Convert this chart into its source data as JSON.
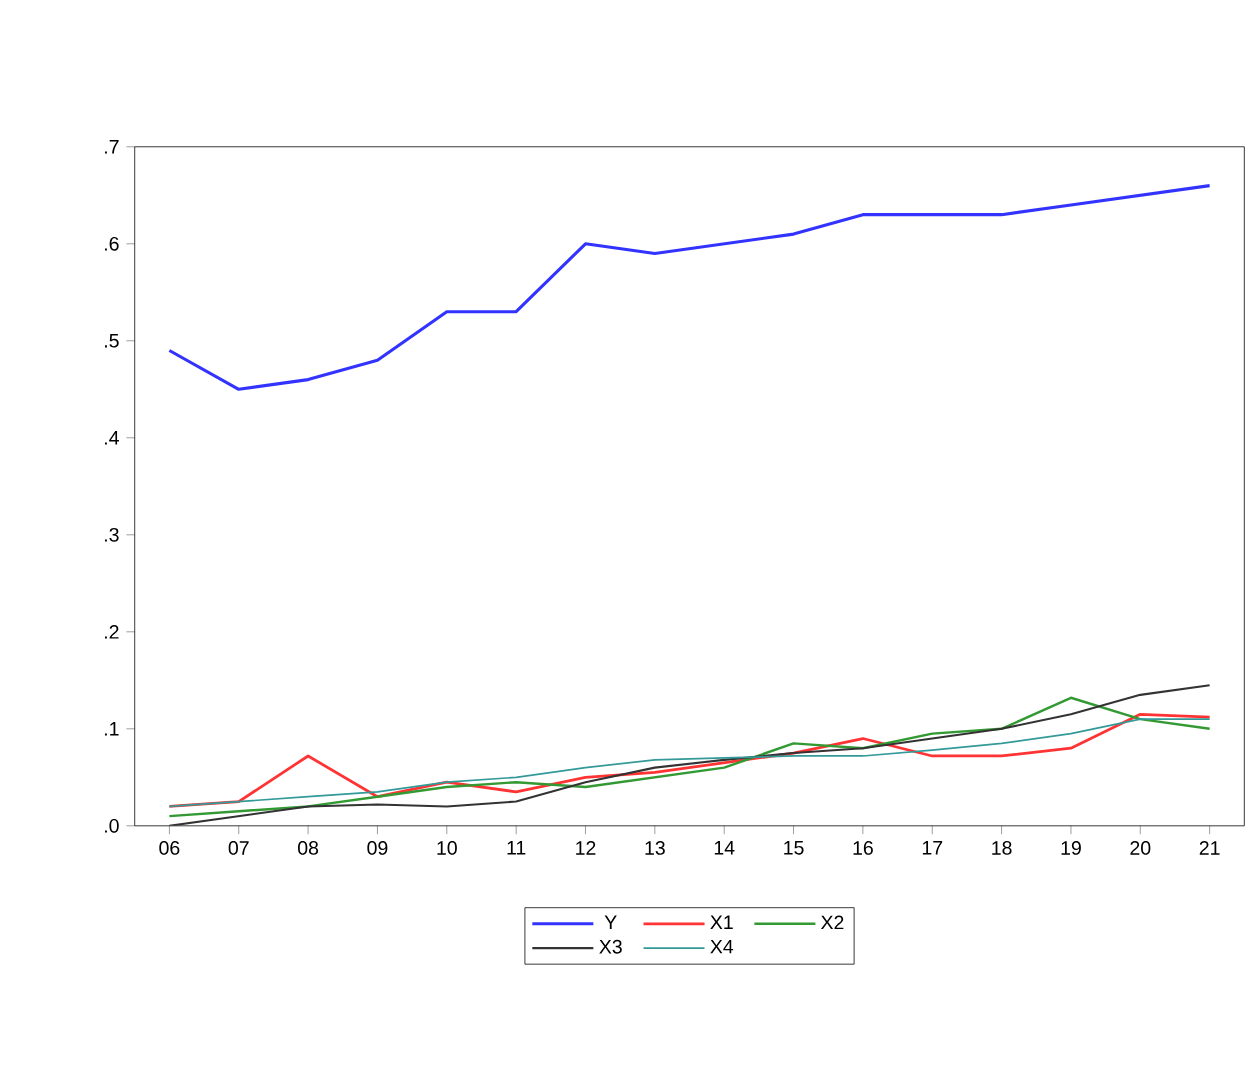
{
  "chart_data": {
    "type": "line",
    "categories": [
      "06",
      "07",
      "08",
      "09",
      "10",
      "11",
      "12",
      "13",
      "14",
      "15",
      "16",
      "17",
      "18",
      "19",
      "20",
      "21"
    ],
    "series": [
      {
        "name": "Y",
        "color": "#3333ff",
        "values": [
          0.49,
          0.45,
          0.46,
          0.48,
          0.53,
          0.53,
          0.6,
          0.59,
          0.6,
          0.61,
          0.63,
          0.63,
          0.63,
          0.64,
          0.65,
          0.66
        ]
      },
      {
        "name": "X1",
        "color": "#ff3333",
        "values": [
          0.02,
          0.025,
          0.072,
          0.03,
          0.045,
          0.035,
          0.05,
          0.055,
          0.065,
          0.075,
          0.09,
          0.072,
          0.072,
          0.08,
          0.115,
          0.112
        ]
      },
      {
        "name": "X2",
        "color": "#339933",
        "values": [
          0.01,
          0.015,
          0.02,
          0.03,
          0.04,
          0.045,
          0.04,
          0.05,
          0.06,
          0.085,
          0.08,
          0.095,
          0.1,
          0.132,
          0.11,
          0.1
        ]
      },
      {
        "name": "X3",
        "color": "#333333",
        "values": [
          0.0,
          0.01,
          0.02,
          0.022,
          0.02,
          0.025,
          0.045,
          0.06,
          0.068,
          0.075,
          0.08,
          0.09,
          0.1,
          0.115,
          0.135,
          0.145
        ]
      },
      {
        "name": "X4",
        "color": "#339999",
        "values": [
          0.02,
          0.025,
          0.03,
          0.035,
          0.045,
          0.05,
          0.06,
          0.068,
          0.07,
          0.072,
          0.072,
          0.078,
          0.085,
          0.095,
          0.11,
          0.11
        ]
      }
    ],
    "ylim": [
      0,
      0.7
    ],
    "yticks": [
      {
        "value": 0,
        "label": ".0"
      },
      {
        "value": 0.1,
        "label": ".1"
      },
      {
        "value": 0.2,
        "label": ".2"
      },
      {
        "value": 0.3,
        "label": ".3"
      },
      {
        "value": 0.4,
        "label": ".4"
      },
      {
        "value": 0.5,
        "label": ".5"
      },
      {
        "value": 0.6,
        "label": ".6"
      },
      {
        "value": 0.7,
        "label": ".7"
      }
    ],
    "grid": false,
    "legend": "bottom",
    "marker": "none",
    "line_style": "solid"
  }
}
